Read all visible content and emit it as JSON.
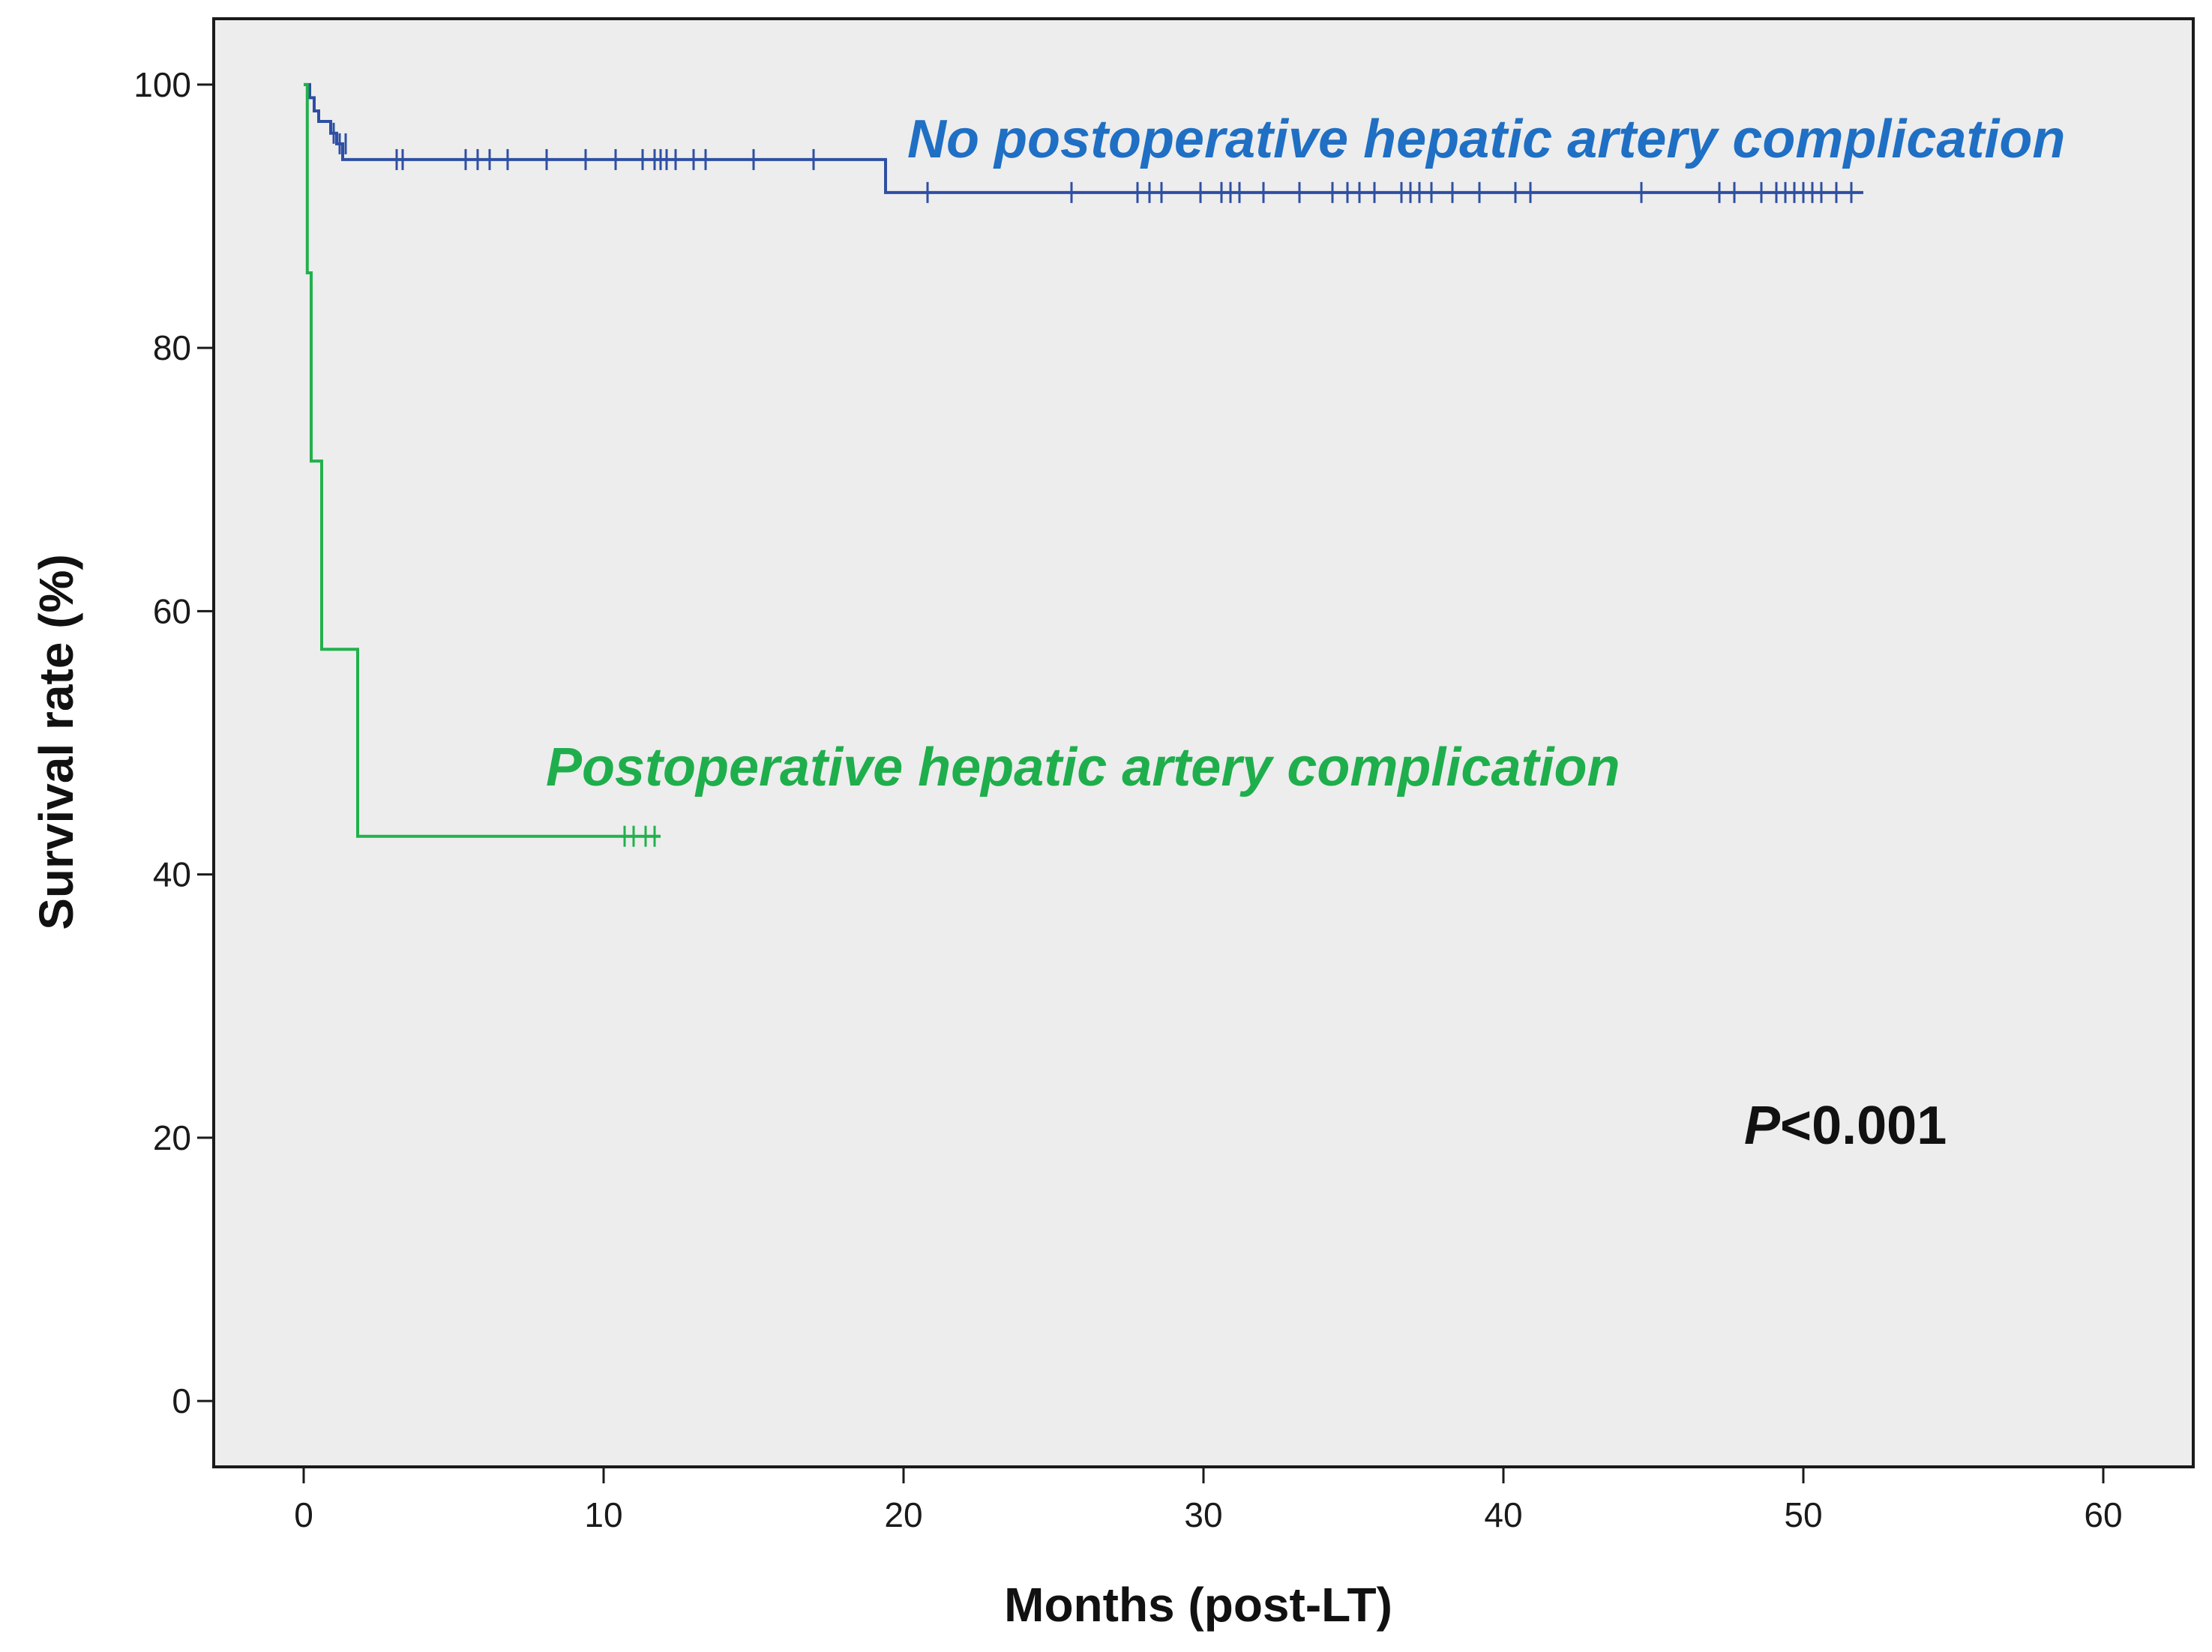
{
  "chart_data": {
    "type": "line",
    "subtype": "kaplan-meier",
    "xlabel": "Months (post-LT)",
    "ylabel": "Survival rate (%)",
    "xlim": [
      -3,
      63
    ],
    "ylim": [
      -5,
      105
    ],
    "xticks": [
      0,
      10,
      20,
      30,
      40,
      50,
      60
    ],
    "yticks": [
      0,
      20,
      40,
      60,
      80,
      100
    ],
    "grid": false,
    "annotation": {
      "italic": "P",
      "text": "<0.001"
    },
    "series": [
      {
        "name": "No postoperative hepatic artery complication",
        "color": "#2e4fa3",
        "label_color": "#1f6fc4",
        "steps": [
          [
            0,
            100
          ],
          [
            0.2,
            99.0
          ],
          [
            0.35,
            98.0
          ],
          [
            0.5,
            97.2
          ],
          [
            0.9,
            96.3
          ],
          [
            1.1,
            95.5
          ],
          [
            1.3,
            94.3
          ],
          [
            19.4,
            91.8
          ],
          [
            52,
            91.8
          ]
        ],
        "censored": [
          [
            1.0,
            96.3
          ],
          [
            1.2,
            95.5
          ],
          [
            1.4,
            95.5
          ],
          [
            3.1,
            94.3
          ],
          [
            3.3,
            94.3
          ],
          [
            5.4,
            94.3
          ],
          [
            5.8,
            94.3
          ],
          [
            6.2,
            94.3
          ],
          [
            6.8,
            94.3
          ],
          [
            8.1,
            94.3
          ],
          [
            9.4,
            94.3
          ],
          [
            10.4,
            94.3
          ],
          [
            11.3,
            94.3
          ],
          [
            11.7,
            94.3
          ],
          [
            11.9,
            94.3
          ],
          [
            12.1,
            94.3
          ],
          [
            12.4,
            94.3
          ],
          [
            13.0,
            94.3
          ],
          [
            13.4,
            94.3
          ],
          [
            15.0,
            94.3
          ],
          [
            17.0,
            94.3
          ],
          [
            20.8,
            91.8
          ],
          [
            25.6,
            91.8
          ],
          [
            27.8,
            91.8
          ],
          [
            28.2,
            91.8
          ],
          [
            28.6,
            91.8
          ],
          [
            29.9,
            91.8
          ],
          [
            30.6,
            91.8
          ],
          [
            30.9,
            91.8
          ],
          [
            31.2,
            91.8
          ],
          [
            32.0,
            91.8
          ],
          [
            33.2,
            91.8
          ],
          [
            34.3,
            91.8
          ],
          [
            34.8,
            91.8
          ],
          [
            35.2,
            91.8
          ],
          [
            35.7,
            91.8
          ],
          [
            36.6,
            91.8
          ],
          [
            36.9,
            91.8
          ],
          [
            37.2,
            91.8
          ],
          [
            37.6,
            91.8
          ],
          [
            38.3,
            91.8
          ],
          [
            39.2,
            91.8
          ],
          [
            40.4,
            91.8
          ],
          [
            40.9,
            91.8
          ],
          [
            44.6,
            91.8
          ],
          [
            47.2,
            91.8
          ],
          [
            47.7,
            91.8
          ],
          [
            48.6,
            91.8
          ],
          [
            49.1,
            91.8
          ],
          [
            49.4,
            91.8
          ],
          [
            49.7,
            91.8
          ],
          [
            50.0,
            91.8
          ],
          [
            50.3,
            91.8
          ],
          [
            50.6,
            91.8
          ],
          [
            51.1,
            91.8
          ],
          [
            51.6,
            91.8
          ]
        ]
      },
      {
        "name": "Postoperative hepatic artery complication",
        "color": "#22b14c",
        "label_color": "#1fae4c",
        "steps": [
          [
            0,
            100
          ],
          [
            0.12,
            85.7
          ],
          [
            0.25,
            71.4
          ],
          [
            0.6,
            57.1
          ],
          [
            1.8,
            42.9
          ],
          [
            11.9,
            42.9
          ]
        ],
        "censored": [
          [
            10.7,
            42.9
          ],
          [
            11.0,
            42.9
          ],
          [
            11.4,
            42.9
          ],
          [
            11.7,
            42.9
          ]
        ]
      }
    ]
  }
}
